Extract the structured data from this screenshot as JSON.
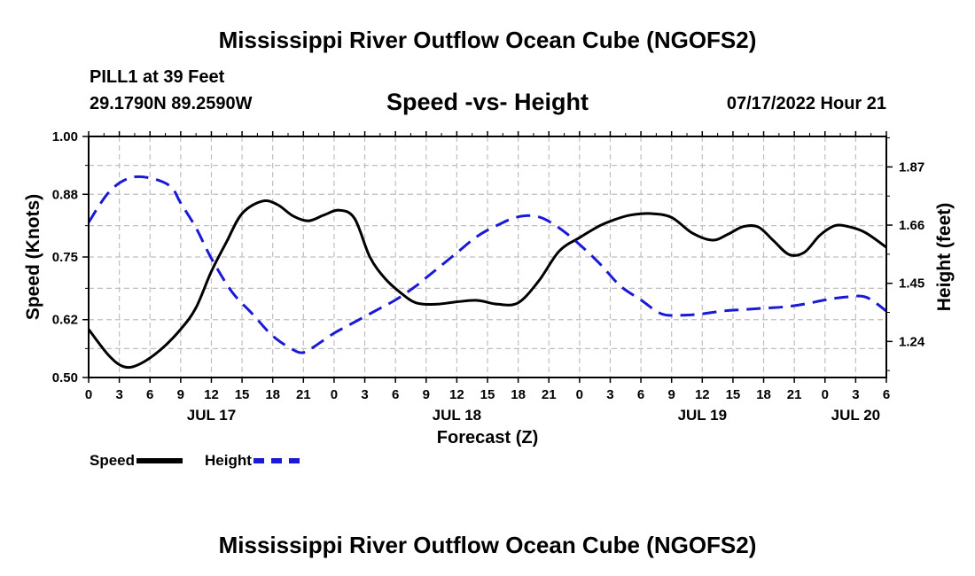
{
  "page": {
    "title": "Mississippi River Outflow Ocean Cube (NGOFS2)",
    "footer_title": "Mississippi River Outflow Ocean Cube (NGOFS2)",
    "station": "PILL1 at 39 Feet",
    "coords": "29.1790N  89.2590W",
    "subtitle": "Speed -vs- Height",
    "date": "07/17/2022 Hour 21"
  },
  "legend": {
    "speed_label": "Speed",
    "height_label": "Height"
  },
  "colors": {
    "speed": "#000000",
    "height": "#1a1ad6",
    "grid": "#bfbfbf"
  },
  "chart_data": {
    "type": "line",
    "title": "Speed -vs- Height",
    "xlabel": "Forecast (Z)",
    "ylabel": "Speed (Knots)",
    "y2label": "Height (feet)",
    "xlim": [
      0,
      78
    ],
    "ylim": [
      0.5,
      1.0
    ],
    "y2lim": [
      1.11,
      1.98
    ],
    "x_ticks": [
      0,
      3,
      6,
      9,
      12,
      15,
      18,
      21,
      24,
      27,
      30,
      33,
      36,
      39,
      42,
      45,
      48,
      51,
      54,
      57,
      60,
      63,
      66,
      69,
      72,
      75,
      78
    ],
    "x_tick_labels": [
      "0",
      "3",
      "6",
      "9",
      "12",
      "15",
      "18",
      "21",
      "0",
      "3",
      "6",
      "9",
      "12",
      "15",
      "18",
      "21",
      "0",
      "3",
      "6",
      "9",
      "12",
      "15",
      "18",
      "21",
      "0",
      "3",
      "6"
    ],
    "y_ticks": [
      0.5,
      0.62,
      0.75,
      0.88,
      1.0
    ],
    "y_tick_labels": [
      "0.50",
      "0.62",
      "0.75",
      "0.88",
      "1.00"
    ],
    "y2_ticks": [
      1.24,
      1.45,
      1.66,
      1.87
    ],
    "y2_tick_labels": [
      "1.24",
      "1.45",
      "1.66",
      "1.87"
    ],
    "date_labels": [
      {
        "label": "JUL 17",
        "x": 12
      },
      {
        "label": "JUL 18",
        "x": 36
      },
      {
        "label": "JUL 19",
        "x": 60
      },
      {
        "label": "JUL 20",
        "x": 75
      }
    ],
    "series": [
      {
        "name": "Speed",
        "axis": "left",
        "style": "solid",
        "x": [
          0,
          2,
          3.5,
          5,
          7,
          9,
          10.5,
          12,
          13.5,
          15,
          17,
          18.5,
          20,
          21.5,
          23,
          24.5,
          26,
          27.5,
          29,
          30.5,
          32,
          34,
          36,
          38,
          40,
          42,
          44,
          46,
          48,
          50,
          51.5,
          53,
          55,
          57,
          59,
          61,
          62.5,
          64,
          65.5,
          67,
          68.5,
          70,
          71.5,
          73,
          74.5,
          76,
          78
        ],
        "values": [
          0.6,
          0.545,
          0.522,
          0.528,
          0.557,
          0.6,
          0.645,
          0.72,
          0.782,
          0.84,
          0.866,
          0.858,
          0.835,
          0.825,
          0.837,
          0.847,
          0.83,
          0.75,
          0.705,
          0.676,
          0.655,
          0.652,
          0.657,
          0.66,
          0.652,
          0.655,
          0.7,
          0.762,
          0.79,
          0.815,
          0.828,
          0.837,
          0.84,
          0.832,
          0.8,
          0.785,
          0.797,
          0.813,
          0.812,
          0.783,
          0.755,
          0.76,
          0.795,
          0.815,
          0.812,
          0.8,
          0.77
        ]
      },
      {
        "name": "Height",
        "axis": "right",
        "style": "dashed",
        "x": [
          0,
          2,
          4,
          6,
          8,
          9,
          10.5,
          12,
          14,
          16,
          18,
          20,
          21,
          22,
          24,
          26,
          28,
          30,
          32,
          33,
          34,
          36,
          38,
          40,
          42,
          44,
          46,
          48,
          50,
          52,
          54,
          56,
          58,
          60,
          62,
          64,
          66,
          68,
          70,
          72,
          74,
          76,
          78
        ],
        "values": [
          1.67,
          1.78,
          1.83,
          1.83,
          1.8,
          1.74,
          1.65,
          1.54,
          1.42,
          1.34,
          1.26,
          1.21,
          1.2,
          1.22,
          1.27,
          1.31,
          1.35,
          1.39,
          1.44,
          1.47,
          1.5,
          1.56,
          1.62,
          1.66,
          1.69,
          1.69,
          1.65,
          1.59,
          1.52,
          1.44,
          1.39,
          1.34,
          1.335,
          1.34,
          1.35,
          1.355,
          1.36,
          1.365,
          1.375,
          1.39,
          1.4,
          1.4,
          1.35
        ]
      }
    ]
  }
}
